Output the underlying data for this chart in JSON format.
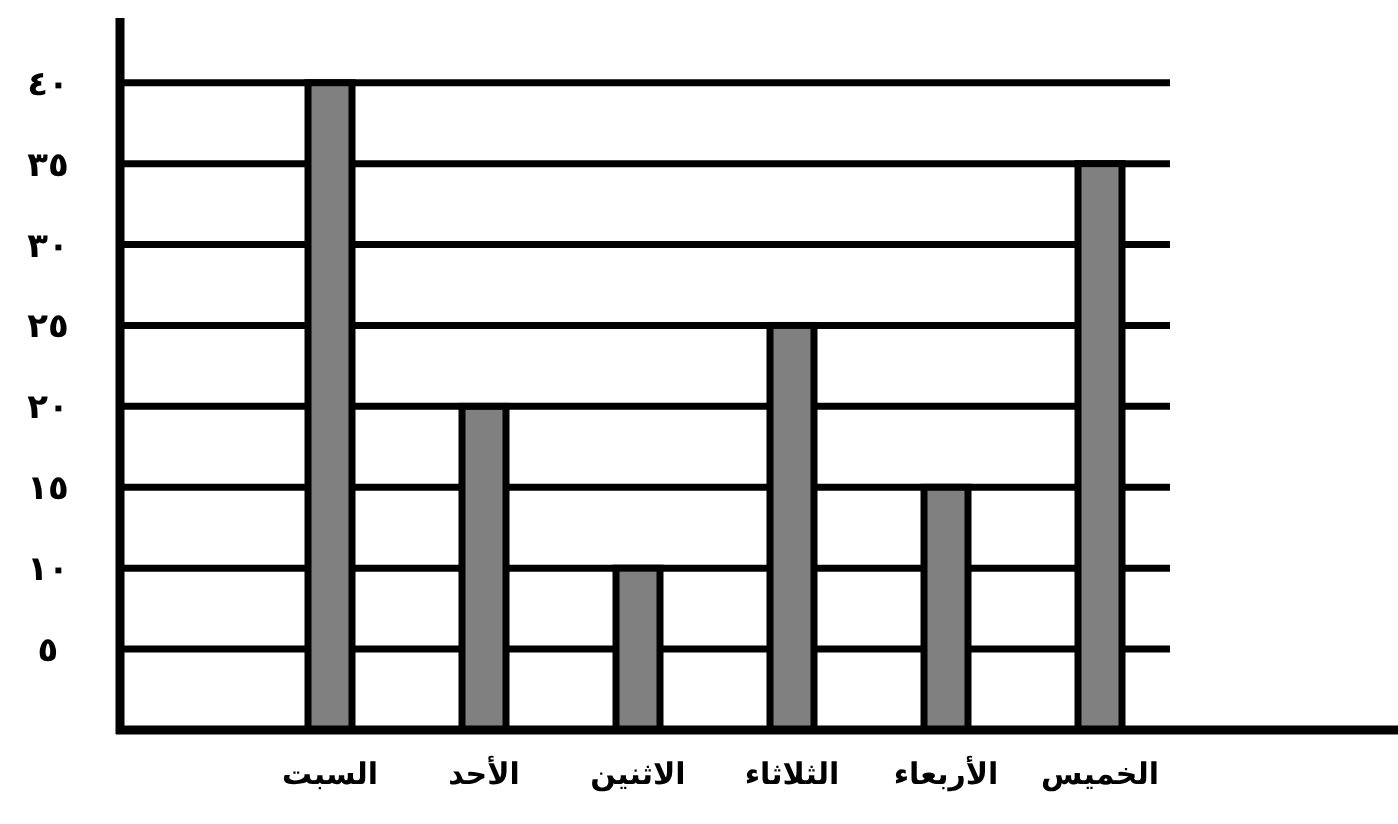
{
  "chart_data": {
    "type": "bar",
    "categories": [
      "السبت",
      "الأحد",
      "الاثنين",
      "الثلاثاء",
      "الأربعاء",
      "الخميس"
    ],
    "values": [
      40,
      20,
      10,
      25,
      15,
      35
    ],
    "color": "#808080",
    "ylim": [
      0,
      44
    ],
    "yticks": [
      {
        "value": 5,
        "label": "٥"
      },
      {
        "value": 10,
        "label": "١٠"
      },
      {
        "value": 15,
        "label": "١٥"
      },
      {
        "value": 20,
        "label": "٢٠"
      },
      {
        "value": 25,
        "label": "٢٥"
      },
      {
        "value": 30,
        "label": "٣٠"
      },
      {
        "value": 35,
        "label": "٣٥"
      },
      {
        "value": 40,
        "label": "٤٠"
      }
    ],
    "grid": "y"
  }
}
